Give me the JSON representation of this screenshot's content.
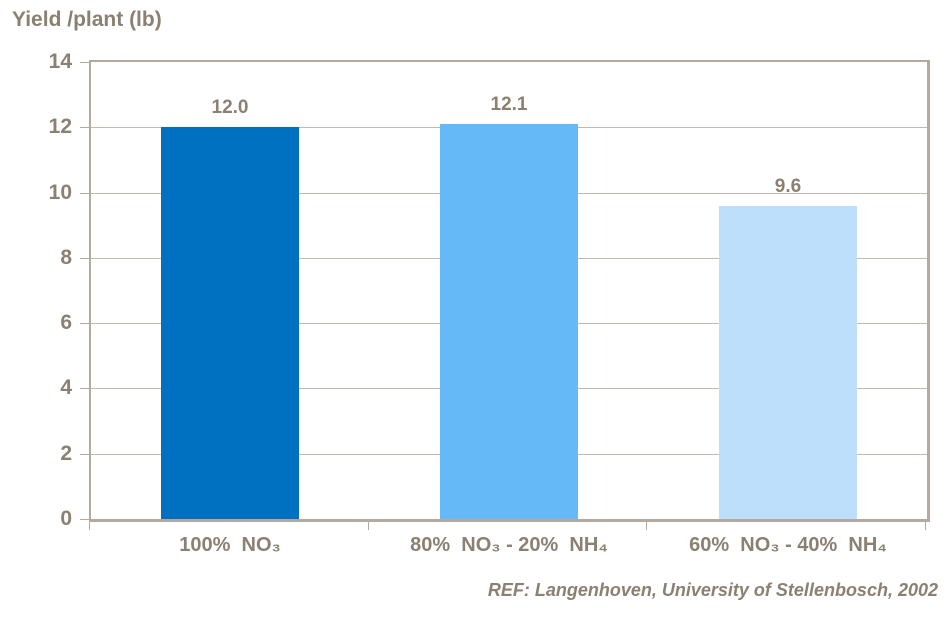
{
  "title": "Yield /plant (lb)",
  "citation": "REF: Langenhoven, University of Stellenbosch, 2002",
  "colors": {
    "text": "#8B8071",
    "axis": "#B3A99C",
    "gridline": "#C2BAAE",
    "bar_100_no3": "#0070C0",
    "bar_80_no3_20_nh4": "#66B9F7",
    "bar_60_no3_40_nh4": "#BDDFFB"
  },
  "chart_data": {
    "type": "bar",
    "title": "Yield /plant (lb)",
    "ylabel": "Yield /plant (lb)",
    "xlabel": "",
    "categories": [
      "100%  NO₃",
      "80%  NO₃ - 20%  NH₄",
      "60%  NO₃ - 40%  NH₄"
    ],
    "values": [
      12.0,
      12.1,
      9.6
    ],
    "value_labels": [
      "12.0",
      "12.1",
      "9.6"
    ],
    "bar_colors": [
      "#0070C0",
      "#66B9F7",
      "#BDDFFB"
    ],
    "ylim": [
      0,
      14
    ],
    "yticks": [
      0,
      2,
      4,
      6,
      8,
      10,
      12,
      14
    ],
    "grid": true,
    "legend": false,
    "annotation": "REF: Langenhoven, University of Stellenbosch, 2002"
  }
}
